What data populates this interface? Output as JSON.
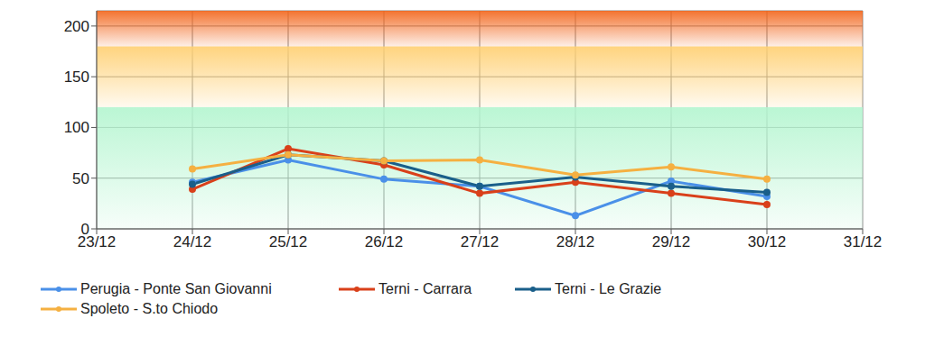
{
  "chart_data": {
    "type": "line",
    "categories": [
      "23/12",
      "24/12",
      "25/12",
      "26/12",
      "27/12",
      "28/12",
      "29/12",
      "30/12",
      "31/12"
    ],
    "series": [
      {
        "name": "Perugia - Ponte San Giovanni",
        "color": "#4a90e8",
        "values": [
          null,
          46,
          68,
          49,
          42,
          13,
          47,
          32,
          null
        ]
      },
      {
        "name": "Terni - Carrara",
        "color": "#d9401a",
        "values": [
          null,
          39,
          79,
          63,
          35,
          46,
          35,
          24,
          null
        ]
      },
      {
        "name": "Terni - Le Grazie",
        "color": "#1a5f8a",
        "values": [
          null,
          44,
          73,
          67,
          42,
          51,
          42,
          36,
          null
        ]
      },
      {
        "name": "Spoleto - S.to Chiodo",
        "color": "#f5b041",
        "values": [
          null,
          59,
          73,
          67,
          68,
          53,
          61,
          49,
          null
        ]
      }
    ],
    "ylim": [
      0,
      215
    ],
    "yticks": [
      0,
      50,
      100,
      150,
      200
    ],
    "grid": true,
    "marker": "circle",
    "legend": "bottom",
    "bands": [
      {
        "from": 0,
        "to": 120,
        "color": "#b3f5cf"
      },
      {
        "from": 120,
        "to": 180,
        "color": "#ffcf70"
      },
      {
        "from": 180,
        "to": 215,
        "color": "#f26419"
      }
    ]
  }
}
